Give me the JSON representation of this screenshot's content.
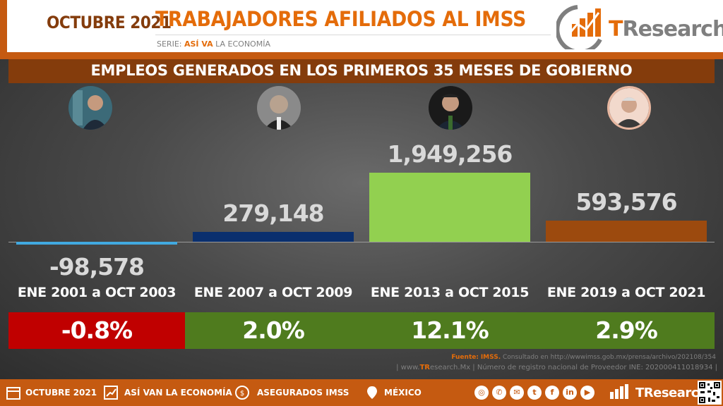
{
  "header": {
    "date": "OCTUBRE 2021",
    "title": "TRABAJADORES AFILIADOS AL IMSS",
    "serie_prefix": "SERIE:",
    "serie_highlight": "ASÍ VA",
    "serie_suffix": "LA ECONOMÍA",
    "logo_t": "T",
    "logo_rest": "Research"
  },
  "band_title": "EMPLEOS GENERADOS EN LOS PRIMEROS 35 MESES DE GOBIERNO",
  "chart_data": {
    "type": "bar",
    "title": "EMPLEOS GENERADOS EN LOS PRIMEROS 35 MESES DE GOBIERNO",
    "categories": [
      "ENE 2001 a OCT 2003",
      "ENE 2007 a OCT 2009",
      "ENE 2013 a OCT 2015",
      "ENE 2019 a OCT 2021"
    ],
    "values": [
      -98578,
      279148,
      1949256,
      593576
    ],
    "value_labels": [
      "-98,578",
      "279,148",
      "1,949,256",
      "593,576"
    ],
    "percent_labels": [
      "-0.8%",
      "2.0%",
      "12.1%",
      "2.9%"
    ],
    "bar_colors": [
      "#41a9e0",
      "#0a2f6e",
      "#92d050",
      "#9c4a0e"
    ],
    "percent_colors": [
      "#c00000",
      "#4f7b1e",
      "#4f7b1e",
      "#4f7b1e"
    ]
  },
  "footer": {
    "source_label": "Fuente:",
    "source_org": "IMSS.",
    "source_text": "Consultado en http://wwwimss.gob.mx/prensa/archivo/202108/354",
    "registro_prefix": "| www.",
    "registro_tr": "TR",
    "registro_text": "esearch.Mx | Número de registro nacional de Proveedor INE: 202000411018934 |",
    "items": [
      "OCTUBRE 2021",
      "ASÍ VAN LA ECONOMÍA",
      "ASEGURADOS IMSS",
      "MÉXICO"
    ],
    "logo_text": "TResearch",
    "social": [
      "globe-icon",
      "whatsapp-icon",
      "mail-icon",
      "twitter-icon",
      "facebook-icon",
      "linkedin-icon",
      "youtube-icon"
    ]
  }
}
